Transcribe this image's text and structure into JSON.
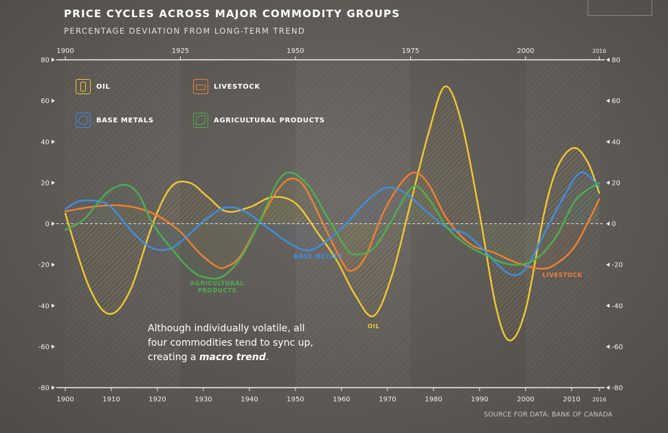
{
  "title": "PRICE CYCLES ACROSS MAJOR COMMODITY GROUPS",
  "subtitle": "PERCENTAGE DEVIATION FROM LONG-TERM TREND",
  "source": "SOURCE FOR DATA: BANK OF CANADA",
  "note": {
    "line1": "Although individually volatile, all",
    "line2": "four commodities tend to sync up,",
    "line3_prefix": "creating a ",
    "line3_bold": "macro trend",
    "line3_suffix": "."
  },
  "legend": [
    {
      "name": "OIL",
      "color": "#f2c832",
      "icon": "oil-barrel-icon"
    },
    {
      "name": "LIVESTOCK",
      "color": "#f08030",
      "icon": "livestock-icon"
    },
    {
      "name": "BASE METALS",
      "color": "#3d8fe0",
      "icon": "base-metals-icon"
    },
    {
      "name": "AGRICULTURAL PRODUCTS",
      "color": "#4caf50",
      "icon": "agriculture-icon"
    }
  ],
  "chart_data": {
    "type": "line",
    "xlim": [
      1900,
      2016
    ],
    "ylim": [
      -80,
      80
    ],
    "y_ticks": [
      80,
      60,
      40,
      20,
      0,
      -20,
      -40,
      -60,
      -80
    ],
    "x_ticks_bottom": [
      "1900",
      "1910",
      "1920",
      "1930",
      "1940",
      "1950",
      "1960",
      "1970",
      "1980",
      "1990",
      "2000",
      "2010",
      "2016"
    ],
    "x_ticks_top": [
      "1900",
      "1925",
      "1950",
      "1975",
      "2000",
      "2016"
    ],
    "annotations": [
      {
        "text": "BASE METALS",
        "x": 1955,
        "y": -17,
        "color": "#3d8fe0"
      },
      {
        "text": "AGRICULTURAL",
        "x": 1933,
        "y": -30,
        "color": "#4caf50"
      },
      {
        "text": "PRODUCTS",
        "x": 1933,
        "y": -33.5,
        "color": "#4caf50"
      },
      {
        "text": "OIL",
        "x": 1967,
        "y": -51,
        "color": "#f2c832"
      },
      {
        "text": "LIVESTOCK",
        "x": 2008,
        "y": -26,
        "color": "#f08030"
      }
    ],
    "series": [
      {
        "name": "OIL",
        "color": "#f2c832",
        "x": [
          1900,
          1905,
          1909.5,
          1914,
          1919,
          1923,
          1927,
          1931,
          1935,
          1940,
          1945,
          1950,
          1955,
          1959,
          1963,
          1967,
          1971,
          1975,
          1979,
          1982.5,
          1986,
          1990,
          1993.5,
          1996.5,
          2000,
          2004,
          2007,
          2010.5,
          2013.5,
          2016
        ],
        "y": [
          5,
          -30,
          -44,
          -33,
          0,
          18,
          20,
          13,
          6,
          8,
          13,
          10,
          -5,
          -18,
          -35,
          -45,
          -25,
          10,
          45,
          67,
          50,
          5,
          -40,
          -57,
          -42,
          5,
          28,
          37,
          30,
          15
        ]
      },
      {
        "name": "LIVESTOCK",
        "color": "#f08030",
        "x": [
          1900,
          1905,
          1910,
          1915,
          1920,
          1925,
          1929,
          1933,
          1935,
          1938,
          1942,
          1946,
          1949,
          1952,
          1956,
          1960,
          1962,
          1965,
          1969,
          1973,
          1976,
          1979,
          1983,
          1988,
          1993,
          1998,
          2003.5,
          2007,
          2011,
          2016
        ],
        "y": [
          6,
          8,
          9,
          8,
          4,
          -4,
          -14,
          -21,
          -21,
          -16,
          0,
          16,
          22,
          18,
          0,
          -18,
          -23,
          -17,
          5,
          20,
          25,
          19,
          2,
          -10,
          -14,
          -19,
          -22,
          -19,
          -10,
          12
        ]
      },
      {
        "name": "BASE METALS",
        "color": "#3d8fe0",
        "x": [
          1900,
          1903,
          1907,
          1910,
          1915,
          1919,
          1923,
          1927,
          1931,
          1935,
          1939,
          1944,
          1949,
          1953,
          1957,
          1961,
          1965,
          1969,
          1972,
          1975,
          1979,
          1983,
          1987,
          1991,
          1994,
          1997,
          2000,
          2004,
          2008,
          2012,
          2016
        ],
        "y": [
          7,
          11,
          11,
          8,
          -5,
          -12,
          -12,
          -5,
          3,
          8,
          6,
          -2,
          -10,
          -13,
          -8,
          0,
          10,
          17,
          17,
          13,
          5,
          -2,
          -5,
          -13,
          -20,
          -25,
          -22,
          -5,
          12,
          25,
          18
        ]
      },
      {
        "name": "AGRICULTURAL PRODUCTS",
        "color": "#4caf50",
        "x": [
          1900,
          1904,
          1909,
          1913,
          1916,
          1919,
          1923,
          1927,
          1930,
          1934,
          1938,
          1942,
          1946,
          1949,
          1953,
          1957,
          1961,
          1963,
          1967,
          1971,
          1975.5,
          1979,
          1983,
          1987,
          1991,
          1995,
          1999,
          2003,
          2007,
          2011,
          2016
        ],
        "y": [
          -3,
          2,
          15,
          19,
          14,
          0,
          -12,
          -22,
          -26,
          -26,
          -17,
          0,
          20,
          25,
          18,
          3,
          -12,
          -15,
          -12,
          2,
          18,
          12,
          -2,
          -10,
          -15,
          -19,
          -20,
          -16,
          -5,
          12,
          20
        ]
      }
    ]
  }
}
